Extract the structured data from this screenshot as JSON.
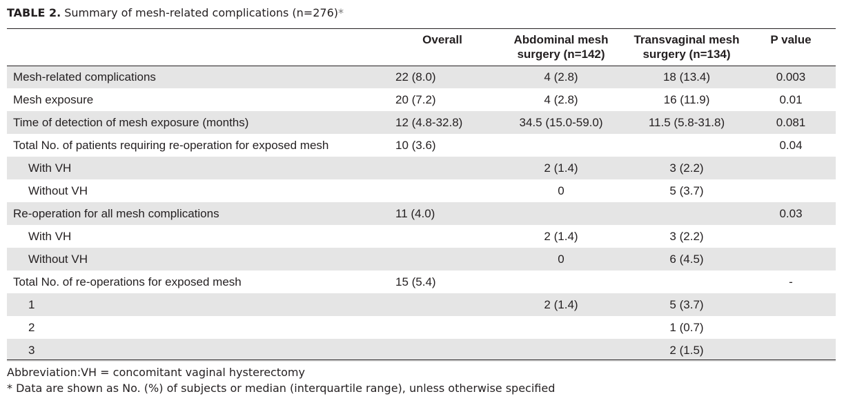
{
  "title": {
    "label": "TABLE 2.",
    "text": "Summary of mesh-related complications (n=276)",
    "marker": "*"
  },
  "table": {
    "columns": [
      "",
      "Overall",
      "Abdominal mesh surgery (n=142)",
      "Transvaginal mesh surgery (n=134)",
      "P value"
    ],
    "rows": [
      {
        "label": "Mesh-related complications",
        "indent": false,
        "shade": true,
        "overall": "22 (8.0)",
        "abdominal": "4 (2.8)",
        "transvaginal": "18 (13.4)",
        "p": "0.003"
      },
      {
        "label": "Mesh exposure",
        "indent": false,
        "shade": false,
        "overall": "20 (7.2)",
        "abdominal": "4 (2.8)",
        "transvaginal": "16 (11.9)",
        "p": "0.01"
      },
      {
        "label": "Time of detection of mesh exposure (months)",
        "indent": false,
        "shade": true,
        "overall": "12 (4.8-32.8)",
        "abdominal": "34.5 (15.0-59.0)",
        "transvaginal": "11.5 (5.8-31.8)",
        "p": "0.081"
      },
      {
        "label": "Total No. of patients requiring re-operation for exposed mesh",
        "indent": false,
        "shade": false,
        "overall": "10 (3.6)",
        "abdominal": "",
        "transvaginal": "",
        "p": "0.04"
      },
      {
        "label": "With VH",
        "indent": true,
        "shade": true,
        "overall": "",
        "abdominal": "2 (1.4)",
        "transvaginal": "3 (2.2)",
        "p": ""
      },
      {
        "label": "Without VH",
        "indent": true,
        "shade": false,
        "overall": "",
        "abdominal": "0",
        "transvaginal": "5 (3.7)",
        "p": ""
      },
      {
        "label": "Re-operation for all mesh complications",
        "indent": false,
        "shade": true,
        "overall": "11 (4.0)",
        "abdominal": "",
        "transvaginal": "",
        "p": "0.03"
      },
      {
        "label": "With VH",
        "indent": true,
        "shade": false,
        "overall": "",
        "abdominal": "2 (1.4)",
        "transvaginal": "3 (2.2)",
        "p": ""
      },
      {
        "label": "Without VH",
        "indent": true,
        "shade": true,
        "overall": "",
        "abdominal": "0",
        "transvaginal": "6 (4.5)",
        "p": ""
      },
      {
        "label": "Total No. of re-operations for exposed mesh",
        "indent": false,
        "shade": false,
        "overall": "15 (5.4)",
        "abdominal": "",
        "transvaginal": "",
        "p": "-"
      },
      {
        "label": "1",
        "indent": true,
        "shade": true,
        "overall": "",
        "abdominal": "2 (1.4)",
        "transvaginal": "5 (3.7)",
        "p": ""
      },
      {
        "label": "2",
        "indent": true,
        "shade": false,
        "overall": "",
        "abdominal": "",
        "transvaginal": "1 (0.7)",
        "p": ""
      },
      {
        "label": "3",
        "indent": true,
        "shade": true,
        "overall": "",
        "abdominal": "",
        "transvaginal": "2 (1.5)",
        "p": ""
      }
    ]
  },
  "footnotes": {
    "abbreviation": "Abbreviation:VH = concomitant vaginal hysterectomy",
    "data_note": "*   Data are shown as No. (%) of subjects or median (interquartile range), unless otherwise specified"
  }
}
